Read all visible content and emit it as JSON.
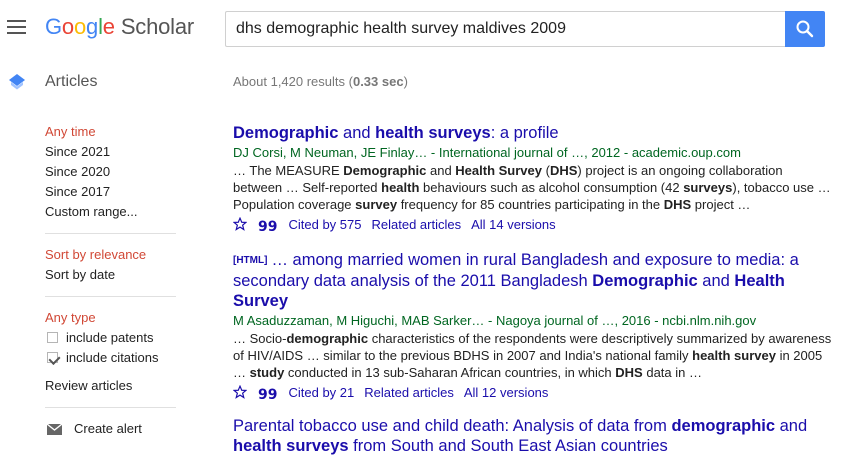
{
  "header": {
    "logo": {
      "g1": "G",
      "g2": "o",
      "g3": "o",
      "g4": "g",
      "g5": "l",
      "g6": "e",
      "suffix": "Scholar"
    },
    "search_value": "dhs demographic health survey maldives 2009"
  },
  "sidebar": {
    "section_label": "Articles",
    "time": {
      "heading": "Any time",
      "items": [
        "Since 2021",
        "Since 2020",
        "Since 2017",
        "Custom range..."
      ]
    },
    "sort": {
      "heading": "Sort by relevance",
      "items": [
        "Sort by date"
      ]
    },
    "type": {
      "heading": "Any type",
      "checks": [
        {
          "label": "include patents",
          "checked": false
        },
        {
          "label": "include citations",
          "checked": true
        }
      ],
      "review": "Review articles"
    },
    "create_alert": "Create alert"
  },
  "results_count": {
    "prefix": "About 1,420 results (",
    "time": "0.33 sec",
    "suffix": ")"
  },
  "results": [
    {
      "title_html": "<b>Demographic</b> and <b>health surveys</b>: a profile",
      "authors": "DJ Corsi, M Neuman, JE Finlay… - International journal of …, 2012 - academic.oup.com",
      "snippet_html": "… The MEASURE <b>Demographic</b> and <b>Health Survey</b> (<b>DHS</b>) project is an ongoing collaboration between … Self-reported <b>health</b> behaviours such as alcohol consumption (42 <b>surveys</b>), tobacco use … Population coverage <b>survey</b> frequency for 85 countries participating in the <b>DHS</b> project …",
      "cited_by": "Cited by 575",
      "related": "Related articles",
      "versions": "All 14 versions"
    },
    {
      "tag": "[HTML]",
      "title_html": "… among married women in rural Bangladesh and exposure to media: a secondary data analysis of the 2011 Bangladesh <b>Demographic</b> and <b>Health Survey</b>",
      "authors": "M Asaduzzaman, M Higuchi, MAB Sarker… - Nagoya journal of …, 2016 - ncbi.nlm.nih.gov",
      "snippet_html": "… Socio-<b>demographic</b> characteristics of the respondents were descriptively summarized by awareness of HIV/AIDS … similar to the previous BDHS in 2007 and India's national family <b>health survey</b> in 2005 … <b>study</b> conducted in 13 sub-Saharan African countries, in which <b>DHS</b> data in …",
      "cited_by": "Cited by 21",
      "related": "Related articles",
      "versions": "All 12 versions"
    },
    {
      "title_html": "Parental tobacco use and child death: Analysis of data from <b>demographic</b> and <b>health surveys</b> from South and South East Asian countries"
    }
  ],
  "colors": {
    "accent": "#4285f4",
    "link": "#1a0dab",
    "source_green": "#006621",
    "filter_red": "#d14836"
  }
}
